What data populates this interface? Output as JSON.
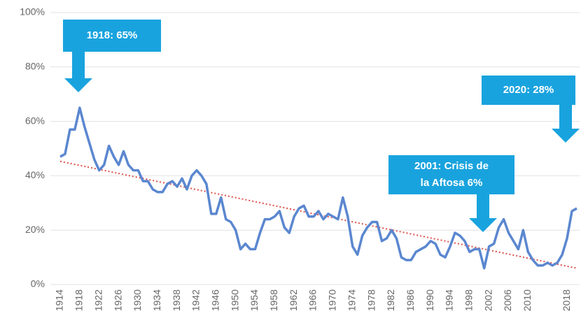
{
  "chart_data": {
    "type": "line",
    "x": [
      1914,
      1915,
      1916,
      1917,
      1918,
      1919,
      1920,
      1921,
      1922,
      1923,
      1924,
      1925,
      1926,
      1927,
      1928,
      1929,
      1930,
      1931,
      1932,
      1933,
      1934,
      1935,
      1936,
      1937,
      1938,
      1939,
      1940,
      1941,
      1942,
      1943,
      1944,
      1945,
      1946,
      1947,
      1948,
      1949,
      1950,
      1951,
      1952,
      1953,
      1954,
      1955,
      1956,
      1957,
      1958,
      1959,
      1960,
      1961,
      1962,
      1963,
      1964,
      1965,
      1966,
      1967,
      1968,
      1969,
      1970,
      1971,
      1972,
      1973,
      1974,
      1975,
      1976,
      1977,
      1978,
      1979,
      1980,
      1981,
      1982,
      1983,
      1984,
      1985,
      1986,
      1987,
      1988,
      1989,
      1990,
      1991,
      1992,
      1993,
      1994,
      1995,
      1996,
      1997,
      1998,
      1999,
      2000,
      2001,
      2002,
      2003,
      2004,
      2005,
      2006,
      2007,
      2008,
      2009,
      2010,
      2011,
      2012,
      2013,
      2014,
      2015,
      2016,
      2017,
      2018,
      2019,
      2020
    ],
    "series": [
      {
        "color": "#5b87d0",
        "values": [
          47,
          48,
          57,
          57,
          65,
          58,
          52,
          46,
          42,
          44,
          51,
          47,
          44,
          49,
          44,
          42,
          42,
          38,
          38,
          35,
          34,
          34,
          37,
          38,
          36,
          39,
          35,
          40,
          42,
          40,
          37,
          26,
          26,
          32,
          24,
          23,
          20,
          13,
          15,
          13,
          13,
          19,
          24,
          24,
          25,
          27,
          21,
          19,
          25,
          28,
          29,
          25,
          25,
          27,
          24,
          26,
          25,
          24,
          32,
          25,
          14,
          11,
          18,
          21,
          23,
          23,
          16,
          17,
          20,
          17,
          10,
          9,
          9,
          12,
          13,
          14,
          16,
          15,
          11,
          10,
          14,
          19,
          18,
          16,
          12,
          13,
          13,
          6,
          14,
          15,
          21,
          24,
          19,
          16,
          13,
          20,
          12,
          9,
          7,
          7,
          8,
          7,
          8,
          11,
          17,
          27,
          28
        ]
      }
    ],
    "trendline": {
      "color": "#e0504a",
      "x": [
        1914,
        2020
      ],
      "values": [
        45.3,
        6
      ]
    },
    "xlim": [
      1914,
      2020
    ],
    "xticks": [
      1914,
      1918,
      1922,
      1926,
      1930,
      1934,
      1938,
      1942,
      1946,
      1950,
      1954,
      1958,
      1962,
      1966,
      1970,
      1974,
      1978,
      1982,
      1986,
      1990,
      1994,
      1998,
      2002,
      2006,
      2010,
      2018
    ],
    "ylim": [
      0,
      100
    ],
    "yticks": [
      {
        "value": 0,
        "label": "0%"
      },
      {
        "value": 20,
        "label": "20%"
      },
      {
        "value": 40,
        "label": "40%"
      },
      {
        "value": 60,
        "label": "60%"
      },
      {
        "value": 80,
        "label": "80%"
      },
      {
        "value": 100,
        "label": "100%"
      }
    ],
    "grid": true,
    "annotation_color": "#19a3de",
    "annotations": [
      {
        "lines": [
          "1918:  65%"
        ]
      },
      {
        "lines": [
          "2020:  28%"
        ]
      },
      {
        "lines": [
          "2001:  Crisis de",
          "la Aftosa 6%"
        ]
      }
    ]
  }
}
